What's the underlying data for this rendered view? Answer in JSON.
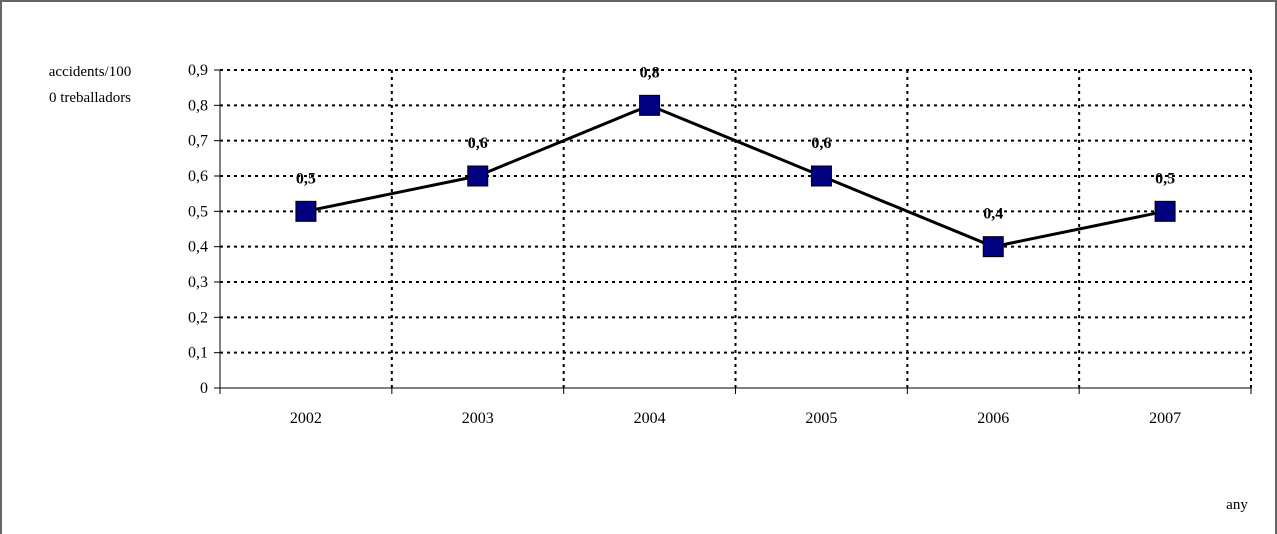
{
  "chart_data": {
    "type": "line",
    "title": "",
    "ylabel_lines": [
      "accidents/100",
      "0 treballadors"
    ],
    "xlabel": "any",
    "categories": [
      "2002",
      "2003",
      "2004",
      "2005",
      "2006",
      "2007"
    ],
    "values": [
      0.5,
      0.6,
      0.8,
      0.6,
      0.4,
      0.5
    ],
    "data_labels": [
      "0,5",
      "0,6",
      "0,8",
      "0,6",
      "0,4",
      "0,5"
    ],
    "ylim": [
      0,
      0.9
    ],
    "yticks": [
      "0",
      "0,1",
      "0,2",
      "0,3",
      "0,4",
      "0,5",
      "0,6",
      "0,7",
      "0,8",
      "0,9"
    ],
    "grid": true,
    "line_color": "#000000",
    "marker_color": "#000080"
  }
}
